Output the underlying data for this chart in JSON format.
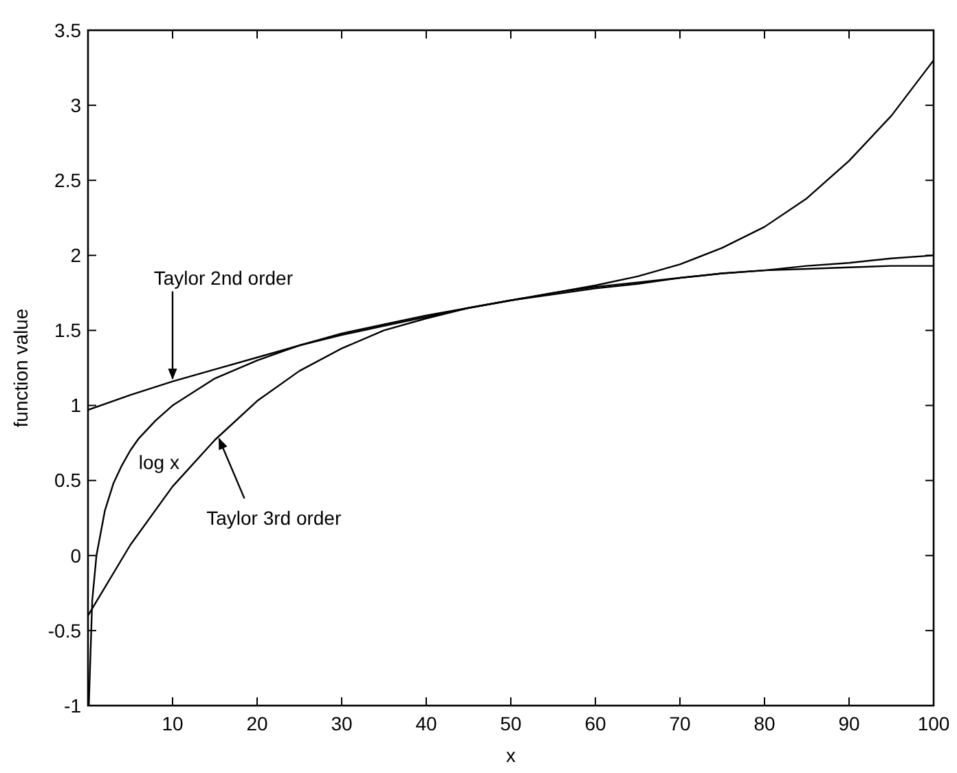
{
  "chart_data": {
    "type": "line",
    "xlabel": "x",
    "ylabel": "function value",
    "xlim": [
      0,
      100
    ],
    "xticks": [
      10,
      20,
      30,
      40,
      50,
      60,
      70,
      80,
      90,
      100
    ],
    "ylim": [
      -1,
      3.5
    ],
    "yticks": [
      -1,
      -0.5,
      0,
      0.5,
      1,
      1.5,
      2,
      2.5,
      3,
      3.5
    ],
    "grid": false,
    "series": [
      {
        "name": "log x",
        "color": "#000000",
        "x": [
          0.1,
          0.5,
          1,
          2,
          3,
          4,
          5,
          6,
          8,
          10,
          15,
          20,
          25,
          30,
          35,
          40,
          45,
          50,
          55,
          60,
          65,
          70,
          75,
          80,
          85,
          90,
          95,
          100
        ],
        "values": [
          -1,
          -0.3,
          0,
          0.3,
          0.48,
          0.6,
          0.7,
          0.78,
          0.9,
          1,
          1.18,
          1.3,
          1.4,
          1.48,
          1.54,
          1.6,
          1.65,
          1.7,
          1.74,
          1.78,
          1.81,
          1.85,
          1.88,
          1.9,
          1.93,
          1.95,
          1.98,
          2
        ]
      },
      {
        "name": "Taylor 2nd order",
        "color": "#000000",
        "x": [
          0,
          5,
          10,
          15,
          20,
          25,
          30,
          35,
          40,
          45,
          50,
          55,
          60,
          65,
          70,
          75,
          80,
          85,
          90,
          95,
          100
        ],
        "values": [
          0.97,
          1.07,
          1.16,
          1.24,
          1.32,
          1.4,
          1.47,
          1.53,
          1.59,
          1.65,
          1.7,
          1.75,
          1.79,
          1.82,
          1.85,
          1.88,
          1.9,
          1.91,
          1.92,
          1.93,
          1.93
        ]
      },
      {
        "name": "Taylor 3rd order",
        "color": "#000000",
        "x": [
          0,
          5,
          10,
          15,
          20,
          25,
          30,
          35,
          40,
          45,
          50,
          55,
          60,
          65,
          70,
          75,
          80,
          85,
          90,
          95,
          100
        ],
        "values": [
          -0.4,
          0.07,
          0.46,
          0.77,
          1.03,
          1.23,
          1.38,
          1.5,
          1.58,
          1.65,
          1.7,
          1.75,
          1.8,
          1.86,
          1.94,
          2.05,
          2.19,
          2.38,
          2.63,
          2.93,
          3.3
        ]
      }
    ]
  }
}
